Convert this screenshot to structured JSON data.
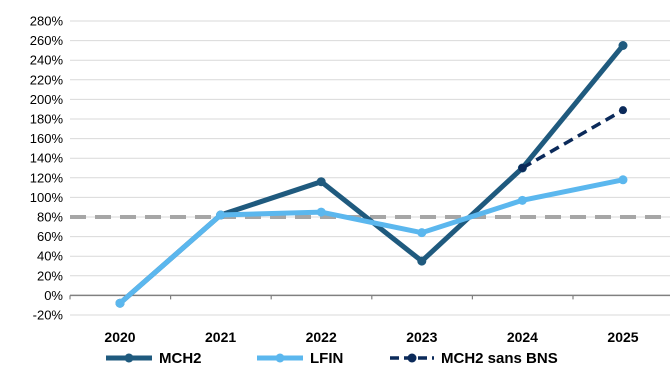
{
  "chart_data": {
    "type": "line",
    "categories": [
      "2020",
      "2021",
      "2022",
      "2023",
      "2024",
      "2025"
    ],
    "y_ticks": [
      "280%",
      "260%",
      "240%",
      "220%",
      "200%",
      "180%",
      "160%",
      "140%",
      "120%",
      "100%",
      "80%",
      "60%",
      "40%",
      "20%",
      "0%",
      "-20%"
    ],
    "ylim": [
      -20,
      280
    ],
    "y_unit": "%",
    "grid": true,
    "legend_position": "bottom",
    "reference_line": {
      "value": 80,
      "color": "#a6a6a6",
      "style": "dashed"
    },
    "series": [
      {
        "name": "MCH2",
        "color": "#1f5a7e",
        "style": "solid",
        "values": [
          -8,
          82,
          116,
          35,
          130,
          255
        ]
      },
      {
        "name": "LFIN",
        "color": "#5bb7ee",
        "style": "solid",
        "values": [
          -8,
          82,
          85,
          64,
          97,
          118
        ]
      },
      {
        "name": "MCH2 sans BNS",
        "color": "#0b2a5a",
        "style": "dashed",
        "values": [
          null,
          null,
          null,
          null,
          130,
          189
        ]
      }
    ]
  }
}
